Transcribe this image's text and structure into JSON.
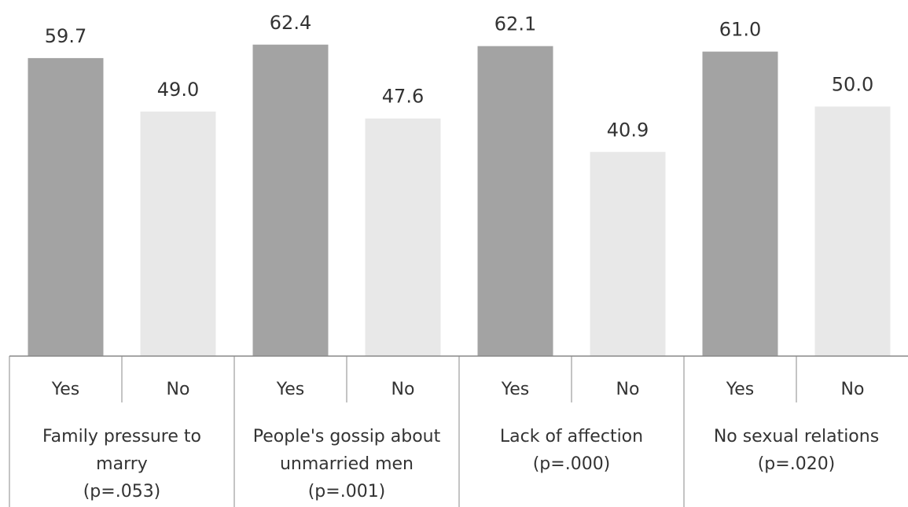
{
  "chart_data": {
    "type": "bar",
    "title": "",
    "xlabel": "",
    "ylabel": "",
    "ylim": [
      0,
      65
    ],
    "grid": false,
    "groups": [
      {
        "label_lines": [
          "Family pressure to",
          "marry",
          "(p=.053)"
        ],
        "bars": [
          {
            "label": "Yes",
            "value": 59.7,
            "value_text": "59.7"
          },
          {
            "label": "No",
            "value": 49.0,
            "value_text": "49.0"
          }
        ]
      },
      {
        "label_lines": [
          "People's gossip about",
          "unmarried men",
          "(p=.001)"
        ],
        "bars": [
          {
            "label": "Yes",
            "value": 62.4,
            "value_text": "62.4"
          },
          {
            "label": "No",
            "value": 47.6,
            "value_text": "47.6"
          }
        ]
      },
      {
        "label_lines": [
          "Lack of affection",
          "(p=.000)"
        ],
        "bars": [
          {
            "label": "Yes",
            "value": 62.1,
            "value_text": "62.1"
          },
          {
            "label": "No",
            "value": 40.9,
            "value_text": "40.9"
          }
        ]
      },
      {
        "label_lines": [
          "No sexual relations",
          "(p=.020)"
        ],
        "bars": [
          {
            "label": "Yes",
            "value": 61.0,
            "value_text": "61.0"
          },
          {
            "label": "No",
            "value": 50.0,
            "value_text": "50.0"
          }
        ]
      }
    ],
    "colors": {
      "yes": "#a3a3a3",
      "no": "#e8e8e8",
      "axis": "#888888",
      "text": "#333333"
    }
  }
}
